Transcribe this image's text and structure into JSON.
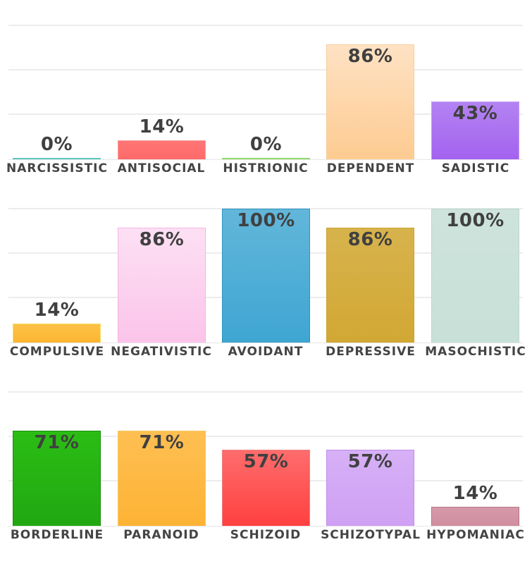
{
  "chart_data": [
    {
      "type": "bar",
      "title": "",
      "xlabel": "",
      "ylabel": "",
      "ylim": [
        0,
        100
      ],
      "grid": true,
      "categories": [
        "NARCISSISTIC",
        "ANTISOCIAL",
        "HISTRIONIC",
        "DEPENDENT",
        "SADISTIC"
      ],
      "values": [
        0,
        14,
        0,
        86,
        43
      ],
      "value_labels": [
        "0%",
        "14%",
        "0%",
        "86%",
        "43%"
      ],
      "colors": [
        "#5cc8c0",
        "#ff6b6b",
        "#8fd86a",
        "#fdd1a0",
        "#a96cf0"
      ]
    },
    {
      "type": "bar",
      "title": "",
      "xlabel": "",
      "ylabel": "",
      "ylim": [
        0,
        100
      ],
      "grid": true,
      "categories": [
        "COMPULSIVE",
        "NEGATIVISTIC",
        "AVOIDANT",
        "DEPRESSIVE",
        "MASOCHISTIC"
      ],
      "values": [
        14,
        86,
        100,
        86,
        100
      ],
      "value_labels": [
        "14%",
        "86%",
        "100%",
        "86%",
        "100%"
      ],
      "colors": [
        "#fdb93a",
        "#fcc9ec",
        "#45a9d3",
        "#d4ad3d",
        "#cae2da"
      ]
    },
    {
      "type": "bar",
      "title": "",
      "xlabel": "",
      "ylabel": "",
      "ylim": [
        0,
        100
      ],
      "grid": true,
      "categories": [
        "BORDERLINE",
        "PARANOID",
        "SCHIZOID",
        "SCHIZOTYPAL",
        "HYPOMANIAC"
      ],
      "values": [
        71,
        71,
        57,
        57,
        14
      ],
      "value_labels": [
        "71%",
        "71%",
        "57%",
        "57%",
        "14%"
      ],
      "colors": [
        "#25b613",
        "#feb944",
        "#ff4f4f",
        "#d4a8f5",
        "#d293a5"
      ]
    }
  ],
  "bar_styles": [
    [
      {
        "top": "#6fd0c8",
        "bottom": "#5cc8c0",
        "border": "#4fbab2"
      },
      {
        "top": "#ff7575",
        "bottom": "#ff6a6a",
        "border": "#f5a0a0"
      },
      {
        "top": "#9ee07c",
        "bottom": "#8fd86a",
        "border": "#8fd86a"
      },
      {
        "top": "#fee2c4",
        "bottom": "#fdcb91",
        "border": "#f7cc9a"
      },
      {
        "top": "#b383f2",
        "bottom": "#a462ef",
        "border": "#c59af5"
      }
    ],
    [
      {
        "top": "#fdc247",
        "bottom": "#fcb531",
        "border": "#f5e06a"
      },
      {
        "top": "#fde0f4",
        "bottom": "#fbc4e9",
        "border": "#f6b4e0"
      },
      {
        "top": "#62b6da",
        "bottom": "#3ea6d2",
        "border": "#2f94c0"
      },
      {
        "top": "#d7b34d",
        "bottom": "#d2a834",
        "border": "#c9a230"
      },
      {
        "top": "#cde3dc",
        "bottom": "#c8e0d8",
        "border": "#bcd8cd"
      }
    ],
    [
      {
        "top": "#2bbd14",
        "bottom": "#21a812",
        "border": "#1c8e10"
      },
      {
        "top": "#febf52",
        "bottom": "#fdb334",
        "border": "#f5c860"
      },
      {
        "top": "#ff6c6c",
        "bottom": "#ff4040",
        "border": "#f08080"
      },
      {
        "top": "#d6b0f6",
        "bottom": "#cfa0f3",
        "border": "#c08ce8"
      },
      {
        "top": "#d69aab",
        "bottom": "#cf8e9f",
        "border": "#b77487"
      }
    ]
  ]
}
